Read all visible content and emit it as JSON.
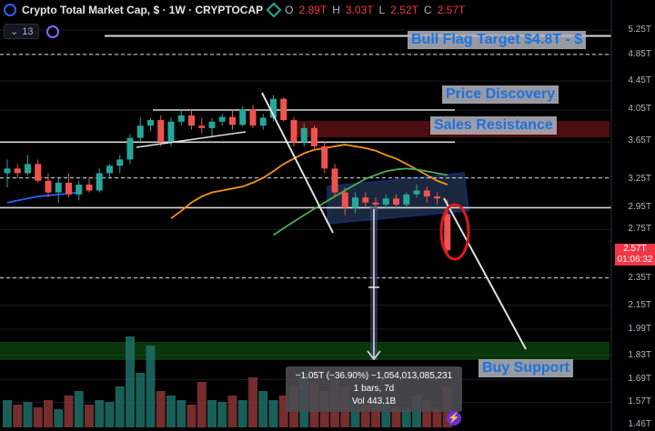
{
  "header": {
    "title": "Crypto Total Market Cap, $ · 1W · CRYPTOCAP",
    "o_label": "O",
    "o": "2.89T",
    "h_label": "H",
    "h": "3.03T",
    "l_label": "L",
    "l": "2.52T",
    "c_label": "C",
    "c": "2.57T",
    "indicators_count": "13"
  },
  "annotations": {
    "bull_flag": "Bull Flag Target $4.8T - $",
    "price_discovery": "Price Discovery",
    "sales_resistance": "Sales Resistance",
    "buy_support": "Buy Support"
  },
  "price_axis": {
    "ticks": [
      "5.25T",
      "4.85T",
      "4.45T",
      "4.05T",
      "3.65T",
      "3.25T",
      "2.95T",
      "2.75T",
      "2.35T",
      "2.15T",
      "1.99T",
      "1.83T",
      "1.69T",
      "1.57T",
      "1.46T"
    ],
    "last_price": "2.57T",
    "countdown": "01:06:32"
  },
  "tooltip": {
    "line1": "−1.05T (−36.90%) −1,054,013,085,231",
    "line2": "1 bars, 7d",
    "line3": "Vol 443.1B"
  },
  "colors": {
    "up": "#26a69a",
    "down": "#ef5350",
    "annotation": "#1e8fff",
    "ma_orange": "#f7931a",
    "ma_green": "#4caf50",
    "ma_blue": "#2962ff"
  },
  "icons": {
    "indicator_toggle": "chevron-down-icon",
    "logo": "tradingview-logo-icon"
  },
  "chart_data": {
    "type": "candlestick",
    "x_unit": "weeks",
    "y_unit": "T USD",
    "y_scale": "log",
    "candles": [
      [
        3.3,
        3.45,
        3.15,
        3.35
      ],
      [
        3.35,
        3.4,
        3.25,
        3.3
      ],
      [
        3.3,
        3.5,
        3.28,
        3.4
      ],
      [
        3.4,
        3.45,
        3.2,
        3.22
      ],
      [
        3.22,
        3.3,
        3.05,
        3.1
      ],
      [
        3.1,
        3.25,
        3.0,
        3.2
      ],
      [
        3.2,
        3.3,
        3.05,
        3.08
      ],
      [
        3.08,
        3.22,
        3.02,
        3.18
      ],
      [
        3.18,
        3.25,
        3.1,
        3.12
      ],
      [
        3.12,
        3.35,
        3.1,
        3.3
      ],
      [
        3.3,
        3.4,
        3.25,
        3.38
      ],
      [
        3.38,
        3.5,
        3.3,
        3.45
      ],
      [
        3.45,
        3.75,
        3.4,
        3.7
      ],
      [
        3.7,
        3.95,
        3.65,
        3.85
      ],
      [
        3.85,
        3.95,
        3.78,
        3.92
      ],
      [
        3.92,
        3.98,
        3.6,
        3.65
      ],
      [
        3.65,
        3.95,
        3.6,
        3.9
      ],
      [
        3.9,
        4.05,
        3.85,
        3.98
      ],
      [
        3.98,
        4.05,
        3.8,
        3.85
      ],
      [
        3.85,
        3.95,
        3.75,
        3.82
      ],
      [
        3.82,
        3.95,
        3.7,
        3.9
      ],
      [
        3.9,
        4.0,
        3.85,
        3.96
      ],
      [
        3.96,
        4.05,
        3.8,
        3.86
      ],
      [
        3.86,
        4.1,
        3.84,
        4.06
      ],
      [
        4.06,
        4.12,
        3.82,
        3.85
      ],
      [
        3.85,
        4.0,
        3.8,
        3.95
      ],
      [
        3.95,
        4.25,
        3.9,
        4.2
      ],
      [
        4.2,
        4.22,
        3.9,
        3.92
      ],
      [
        3.92,
        3.96,
        3.6,
        3.65
      ],
      [
        3.65,
        3.88,
        3.6,
        3.82
      ],
      [
        3.82,
        3.85,
        3.55,
        3.6
      ],
      [
        3.6,
        3.66,
        3.3,
        3.35
      ],
      [
        3.35,
        3.4,
        3.05,
        3.1
      ],
      [
        3.1,
        3.15,
        2.88,
        2.95
      ],
      [
        2.95,
        3.1,
        2.9,
        3.05
      ],
      [
        3.05,
        3.1,
        2.95,
        3.0
      ],
      [
        3.0,
        3.05,
        2.92,
        2.98
      ],
      [
        2.98,
        3.08,
        2.94,
        3.04
      ],
      [
        3.04,
        3.08,
        2.94,
        2.98
      ],
      [
        2.98,
        3.1,
        2.95,
        3.08
      ],
      [
        3.08,
        3.18,
        3.05,
        3.12
      ],
      [
        3.12,
        3.16,
        3.0,
        3.06
      ],
      [
        3.06,
        3.1,
        2.98,
        3.04
      ],
      [
        2.89,
        3.03,
        2.52,
        2.57
      ]
    ],
    "volume_relative": [
      0.3,
      0.25,
      0.28,
      0.22,
      0.3,
      0.2,
      0.35,
      0.4,
      0.25,
      0.3,
      0.28,
      0.45,
      1.0,
      0.6,
      0.9,
      0.4,
      0.35,
      0.3,
      0.25,
      0.5,
      0.3,
      0.28,
      0.35,
      0.3,
      0.55,
      0.4,
      0.3,
      0.35,
      0.45,
      0.6,
      0.5,
      0.4,
      0.55,
      0.45,
      0.3,
      0.25,
      0.3,
      0.28,
      0.22,
      0.2,
      0.35,
      0.3,
      0.2,
      0.45
    ],
    "ma_values": {
      "orange": [
        2.85,
        2.92,
        3.0,
        3.06,
        3.1,
        3.12,
        3.14,
        3.16,
        3.2,
        3.25,
        3.32,
        3.4,
        3.46,
        3.52,
        3.56,
        3.58,
        3.6,
        3.62,
        3.6,
        3.58,
        3.55,
        3.5,
        3.46,
        3.4,
        3.34,
        3.28,
        3.22,
        3.18
      ],
      "green": [
        2.7,
        2.76,
        2.82,
        2.88,
        2.94,
        3.0,
        3.06,
        3.12,
        3.18,
        3.24,
        3.28,
        3.32,
        3.34,
        3.35,
        3.34,
        3.32,
        3.3,
        3.28
      ],
      "blue": [
        3.0,
        3.02,
        3.04,
        3.06,
        3.07,
        3.08,
        3.09,
        3.1
      ]
    },
    "levels": [
      5.15,
      4.85,
      4.05,
      3.65,
      3.25,
      2.95,
      2.35
    ],
    "sales_resistance_zone": [
      3.78,
      3.98
    ],
    "buy_support_zone": [
      1.73,
      1.88
    ],
    "change_abs": "−1.05T",
    "change_pct": "−36.90%"
  }
}
